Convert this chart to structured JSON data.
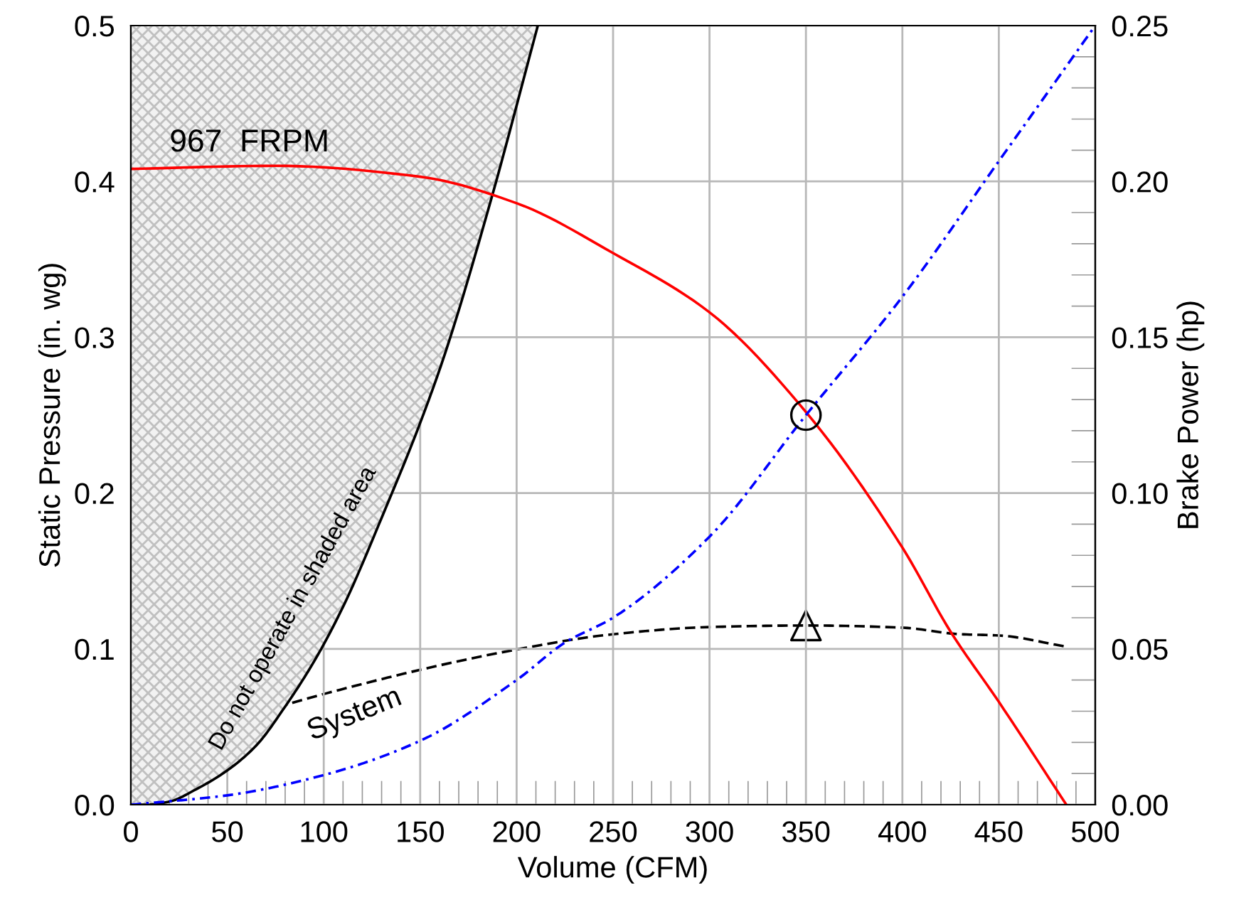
{
  "chart_data": {
    "type": "line",
    "xlabel": "Volume (CFM)",
    "ylabel": "Static Pressure (in. wg)",
    "y2label": "Brake Power (hp)",
    "xlim": [
      0,
      500
    ],
    "xticks": [
      0,
      50,
      100,
      150,
      200,
      250,
      300,
      350,
      400,
      450,
      500
    ],
    "ylim": [
      0,
      0.5
    ],
    "yticks": [
      {
        "value": 0,
        "label": "0.0"
      },
      0.1,
      0.2,
      0.3,
      0.4,
      0.5
    ],
    "y2lim": [
      0,
      0.25
    ],
    "y2ticks": [
      {
        "value": 0,
        "label": "0.00"
      },
      0.05,
      {
        "value": 0.1,
        "label": "0.10"
      },
      0.15,
      {
        "value": 0.2,
        "label": "0.20"
      },
      0.25
    ],
    "grid": true,
    "legend": false,
    "series": [
      {
        "color": "#000000",
        "line_style": "solid",
        "x": [
          0,
          8,
          20,
          34,
          50,
          65,
          80,
          95,
          110,
          132,
          150,
          163,
          186,
          211
        ],
        "values": [
          0,
          0,
          0.002,
          0.01,
          0.022,
          0.038,
          0.063,
          0.092,
          0.127,
          0.19,
          0.245,
          0.29,
          0.385,
          0.5
        ],
        "lower": [
          0,
          0,
          0.002,
          0.01,
          0.022,
          0.038,
          0.063,
          0.092,
          0.127,
          0.19,
          0.245,
          0.29,
          0.385,
          0.5
        ],
        "upper": [
          0.5,
          0.5,
          0.5,
          0.5,
          0.5,
          0.5,
          0.5,
          0.5,
          0.5,
          0.5,
          0.5,
          0.5,
          0.5,
          0.5
        ]
      },
      {
        "color": "#ff0000",
        "line_style": "solid",
        "x": [
          0,
          75,
          150,
          200,
          250,
          300,
          350,
          400,
          425,
          450,
          485
        ],
        "values": [
          0.408,
          0.41,
          0.403,
          0.386,
          0.354,
          0.316,
          0.252,
          0.165,
          0.111,
          0.066,
          0
        ]
      },
      {
        "color": "#0000ff",
        "line_style": "dashdot",
        "x": [
          0,
          50,
          100,
          150,
          200,
          225,
          250,
          300,
          350,
          400,
          450,
          500
        ],
        "values": [
          0,
          0.006,
          0.019,
          0.041,
          0.08,
          0.104,
          0.12,
          0.172,
          0.25,
          0.326,
          0.413,
          0.5
        ]
      },
      {
        "color": "#000000",
        "line_style": "dashed",
        "axis": "y2",
        "x": [
          0,
          100,
          200,
          250,
          300,
          350,
          400,
          430,
          450,
          485
        ],
        "values": [
          0.016,
          0.0355,
          0.0498,
          0.0547,
          0.057,
          0.0575,
          0.0568,
          0.0547,
          0.0543,
          0.0507
        ]
      },
      {
        "type": "scatter",
        "color": "#000000",
        "marker": "circle",
        "x": [
          350
        ],
        "values": [
          0.25
        ]
      },
      {
        "type": "scatter",
        "color": "#000000",
        "marker": "triangle",
        "axis": "y2",
        "x": [
          350
        ],
        "values": [
          0.0575
        ]
      }
    ],
    "annotations": [
      "967  FRPM",
      "System",
      "Do not operate in shaded area"
    ]
  }
}
